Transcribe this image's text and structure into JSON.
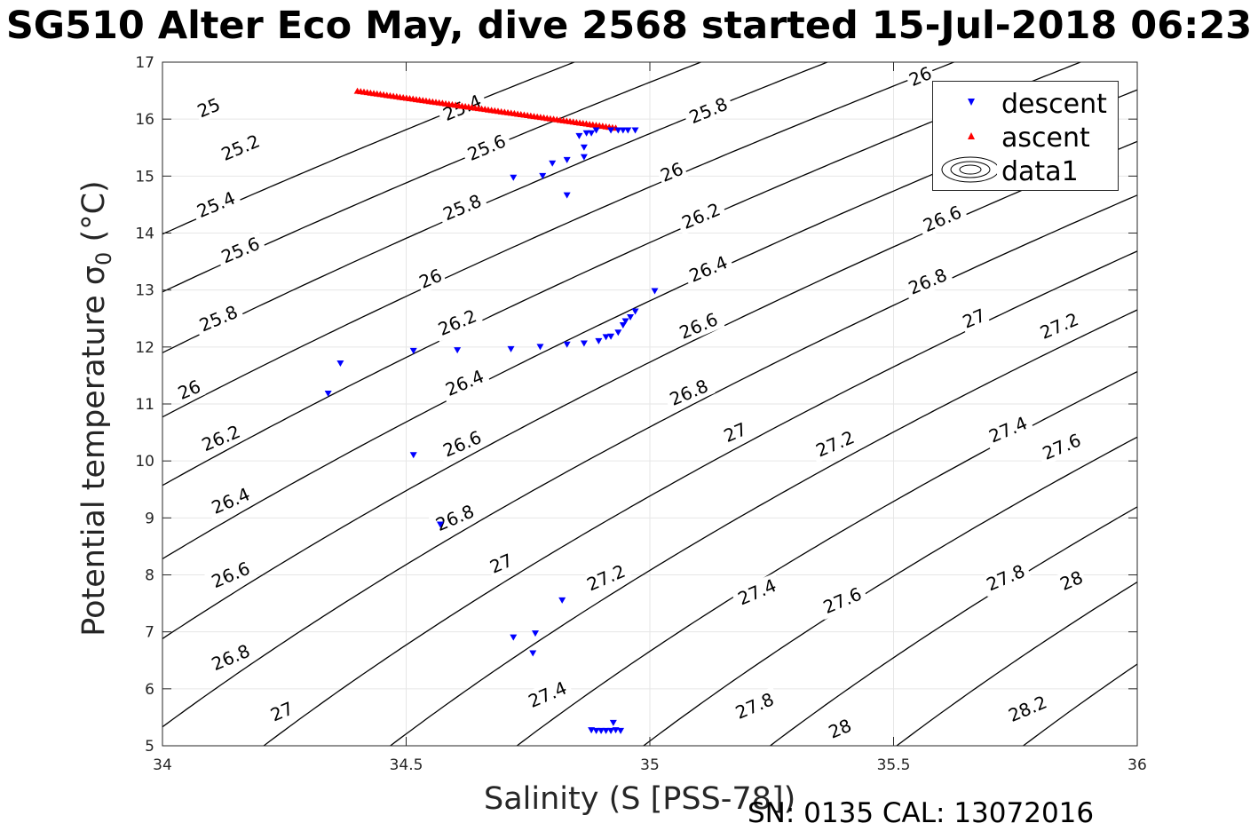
{
  "title": "SG510 Alter Eco May, dive 2568 started 15-Jul-2018 06:23",
  "footer": "SN: 0135  CAL: 13072016",
  "chart_data": {
    "type": "scatter",
    "title": "SG510 Alter Eco May, dive 2568 started 15-Jul-2018 06:23",
    "xlabel": "Salinity (S [PSS-78])",
    "ylabel": "Potential temperature σ",
    "ylabel_sub": "0",
    "ylabel_unit": "(°C)",
    "xlim": [
      34,
      36
    ],
    "ylim": [
      5,
      17
    ],
    "xticks": [
      34,
      34.5,
      35,
      35.5,
      36
    ],
    "xtick_labels": [
      "34",
      "34.5",
      "35",
      "35.5",
      "36"
    ],
    "yticks": [
      5,
      6,
      7,
      8,
      9,
      10,
      11,
      12,
      13,
      14,
      15,
      16,
      17
    ],
    "ytick_labels": [
      "5",
      "6",
      "7",
      "8",
      "9",
      "10",
      "11",
      "12",
      "13",
      "14",
      "15",
      "16",
      "17"
    ],
    "grid": true,
    "legend_position": "top-right",
    "series": [
      {
        "name": "descent",
        "marker": "triangle-down",
        "color": "#0000ff",
        "x": [
          34.97,
          34.955,
          34.945,
          34.935,
          34.92,
          34.89,
          34.88,
          34.87,
          34.855,
          34.865,
          34.865,
          34.83,
          34.8,
          34.78,
          34.72,
          34.83,
          35.01,
          34.97,
          34.96,
          34.95,
          34.945,
          34.935,
          34.92,
          34.91,
          34.895,
          34.865,
          34.83,
          34.775,
          34.715,
          34.605,
          34.515,
          34.365,
          34.34,
          34.515,
          34.57,
          34.82,
          34.765,
          34.72,
          34.76,
          34.88,
          34.89,
          34.9,
          34.91,
          34.92,
          34.93,
          34.94,
          34.925
        ],
        "y": [
          15.8,
          15.8,
          15.8,
          15.8,
          15.8,
          15.8,
          15.75,
          15.75,
          15.7,
          15.5,
          15.33,
          15.28,
          15.22,
          15.0,
          14.97,
          14.66,
          12.98,
          12.62,
          12.52,
          12.45,
          12.38,
          12.25,
          12.18,
          12.17,
          12.1,
          12.06,
          12.04,
          12.0,
          11.96,
          11.94,
          11.93,
          11.71,
          11.18,
          10.1,
          8.88,
          7.55,
          6.97,
          6.9,
          6.62,
          5.27,
          5.26,
          5.26,
          5.26,
          5.26,
          5.27,
          5.26,
          5.4
        ]
      },
      {
        "name": "ascent",
        "marker": "triangle-up",
        "color": "#ff0000",
        "x_range": [
          34.4,
          34.93
        ],
        "y_range": [
          16.5,
          15.85
        ],
        "count": 80
      },
      {
        "name": "data1",
        "type": "contour",
        "description": "potential density sigma-0 isopycnals",
        "color": "#000000",
        "levels": [
          25,
          25.2,
          25.4,
          25.6,
          25.8,
          26,
          26.2,
          26.4,
          26.6,
          26.8,
          27,
          27.2,
          27.4,
          27.6,
          27.8,
          28,
          28.2
        ]
      }
    ],
    "contour_labels": [
      {
        "text": "25",
        "x": 34.095,
        "y": 16.2,
        "angle": -23
      },
      {
        "text": "25.2",
        "x": 34.16,
        "y": 15.5,
        "angle": -23
      },
      {
        "text": "25.4",
        "x": 34.11,
        "y": 14.5,
        "angle": -23
      },
      {
        "text": "25.6",
        "x": 34.16,
        "y": 13.7,
        "angle": -23
      },
      {
        "text": "25.8",
        "x": 34.115,
        "y": 12.5,
        "angle": -23
      },
      {
        "text": "26",
        "x": 34.055,
        "y": 11.25,
        "angle": -23
      },
      {
        "text": "26.2",
        "x": 34.12,
        "y": 10.4,
        "angle": -23
      },
      {
        "text": "26.4",
        "x": 34.14,
        "y": 9.3,
        "angle": -23
      },
      {
        "text": "26.6",
        "x": 34.14,
        "y": 8.0,
        "angle": -23
      },
      {
        "text": "26.8",
        "x": 34.14,
        "y": 6.55,
        "angle": -23
      },
      {
        "text": "27",
        "x": 34.245,
        "y": 5.6,
        "angle": -23
      },
      {
        "text": "25.4",
        "x": 34.615,
        "y": 16.2,
        "angle": -23
      },
      {
        "text": "25.6",
        "x": 34.665,
        "y": 15.5,
        "angle": -23
      },
      {
        "text": "25.8",
        "x": 34.615,
        "y": 14.45,
        "angle": -23
      },
      {
        "text": "26",
        "x": 34.55,
        "y": 13.2,
        "angle": -23
      },
      {
        "text": "26.2",
        "x": 34.605,
        "y": 12.43,
        "angle": -23
      },
      {
        "text": "26.4",
        "x": 34.62,
        "y": 11.37,
        "angle": -23
      },
      {
        "text": "26.6",
        "x": 34.615,
        "y": 10.3,
        "angle": -23
      },
      {
        "text": "26.8",
        "x": 34.6,
        "y": 9.0,
        "angle": -23
      },
      {
        "text": "27",
        "x": 34.695,
        "y": 8.2,
        "angle": -23
      },
      {
        "text": "27.2",
        "x": 34.91,
        "y": 7.95,
        "angle": -23
      },
      {
        "text": "27.4",
        "x": 34.79,
        "y": 5.9,
        "angle": -23
      },
      {
        "text": "25.8",
        "x": 35.12,
        "y": 16.15,
        "angle": -23
      },
      {
        "text": "26",
        "x": 35.045,
        "y": 15.07,
        "angle": -23
      },
      {
        "text": "26.2",
        "x": 35.105,
        "y": 14.3,
        "angle": -23
      },
      {
        "text": "26.4",
        "x": 35.12,
        "y": 13.37,
        "angle": -23
      },
      {
        "text": "26.6",
        "x": 35.1,
        "y": 12.37,
        "angle": -23
      },
      {
        "text": "26.8",
        "x": 35.08,
        "y": 11.2,
        "angle": -23
      },
      {
        "text": "27",
        "x": 35.175,
        "y": 10.5,
        "angle": -23
      },
      {
        "text": "27.2",
        "x": 35.38,
        "y": 10.3,
        "angle": -23
      },
      {
        "text": "27.4",
        "x": 35.22,
        "y": 7.7,
        "angle": -23
      },
      {
        "text": "27.6",
        "x": 35.395,
        "y": 7.55,
        "angle": -23
      },
      {
        "text": "27.8",
        "x": 35.215,
        "y": 5.7,
        "angle": -23
      },
      {
        "text": "28",
        "x": 35.39,
        "y": 5.3,
        "angle": -23
      },
      {
        "text": "26",
        "x": 35.555,
        "y": 16.75,
        "angle": -23
      },
      {
        "text": "26.6",
        "x": 35.6,
        "y": 14.25,
        "angle": -23
      },
      {
        "text": "26.8",
        "x": 35.57,
        "y": 13.15,
        "angle": -23
      },
      {
        "text": "27",
        "x": 35.665,
        "y": 12.5,
        "angle": -23
      },
      {
        "text": "27.2",
        "x": 35.84,
        "y": 12.37,
        "angle": -23
      },
      {
        "text": "27.4",
        "x": 35.735,
        "y": 10.55,
        "angle": -23
      },
      {
        "text": "27.6",
        "x": 35.845,
        "y": 10.25,
        "angle": -23
      },
      {
        "text": "27.8",
        "x": 35.73,
        "y": 7.95,
        "angle": -23
      },
      {
        "text": "28",
        "x": 35.865,
        "y": 7.9,
        "angle": -23
      },
      {
        "text": "28.2",
        "x": 35.775,
        "y": 5.65,
        "angle": -23
      }
    ]
  }
}
